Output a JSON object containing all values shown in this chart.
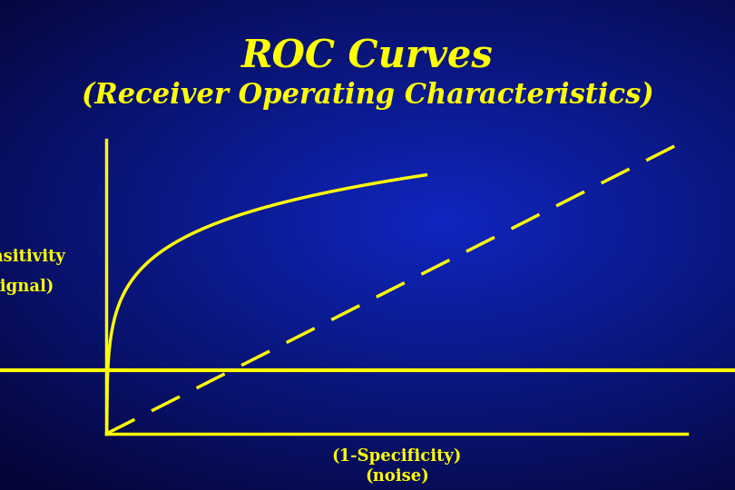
{
  "title_line1": "ROC Curves",
  "title_line2": "(Receiver Operating Characteristics)",
  "xlabel_line1": "(1-Specificity)",
  "xlabel_line2": "(noise)",
  "ylabel_line1": "Sensitivity",
  "ylabel_line2": "(signal)",
  "title_color": "#ffff00",
  "curve_color": "#ffff00",
  "text_color": "#ffff00",
  "axis_color": "#ffff00",
  "title_fontsize": 30,
  "subtitle_fontsize": 22,
  "label_fontsize": 13
}
